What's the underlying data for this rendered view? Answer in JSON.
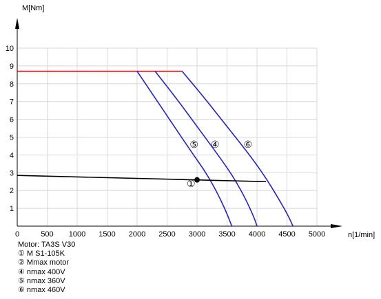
{
  "chart_data": {
    "type": "line",
    "xlabel": "n[1/min]",
    "ylabel": "M[Nm]",
    "xlim": [
      0,
      5000
    ],
    "ylim": [
      0,
      10
    ],
    "x_ticks": [
      "0",
      "500",
      "1000",
      "1500",
      "2000",
      "2500",
      "3000",
      "3500",
      "4000",
      "4500",
      "5000"
    ],
    "y_ticks": [
      "1",
      "2",
      "3",
      "4",
      "5",
      "6",
      "7",
      "8",
      "9",
      "10"
    ],
    "grid": true,
    "series": [
      {
        "label": "Mmax motor",
        "color": "#ff0000",
        "x": [
          0,
          2750
        ],
        "y": [
          8.7,
          8.7
        ]
      },
      {
        "label": "⑤",
        "color": "#2020dd",
        "x": [
          2000,
          2300,
          2600,
          2900,
          3150,
          3350,
          3500,
          3580
        ],
        "y": [
          8.7,
          7.2,
          5.7,
          4.2,
          3.0,
          1.8,
          0.7,
          0
        ]
      },
      {
        "label": "④",
        "color": "#2020dd",
        "x": [
          2300,
          2650,
          3000,
          3350,
          3600,
          3800,
          3950,
          4000
        ],
        "y": [
          8.7,
          7.2,
          5.6,
          4.0,
          2.8,
          1.6,
          0.5,
          0
        ]
      },
      {
        "label": "⑥",
        "color": "#2020dd",
        "x": [
          2750,
          3100,
          3500,
          3900,
          4150,
          4350,
          4520,
          4600
        ],
        "y": [
          8.7,
          7.3,
          5.6,
          3.9,
          2.7,
          1.6,
          0.6,
          0
        ]
      },
      {
        "label": "M S1-105K",
        "color": "#000000",
        "x": [
          0,
          4150
        ],
        "y": [
          2.85,
          2.5
        ]
      }
    ],
    "points": [
      {
        "label": "①",
        "x": 3000,
        "y": 2.6
      }
    ],
    "annotations": [
      {
        "text": "⑤",
        "x": 2950,
        "y": 4.4
      },
      {
        "text": "④",
        "x": 3300,
        "y": 4.4
      },
      {
        "text": "⑥",
        "x": 3850,
        "y": 4.4
      },
      {
        "text": "①",
        "x": 2900,
        "y": 2.2
      }
    ]
  },
  "legend": {
    "lines": [
      "Motor: TA3S V30",
      "① M S1-105K",
      "② Mmax motor",
      "④ nmax 400V",
      "⑤ nmax 360V",
      "⑥ nmax 460V"
    ]
  }
}
